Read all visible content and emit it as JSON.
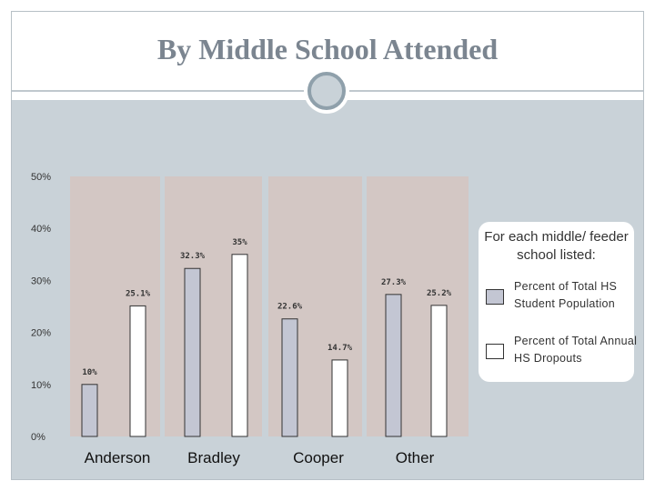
{
  "slide": {
    "title": "By Middle School Attended"
  },
  "chart_data": {
    "type": "bar",
    "title": "",
    "categories": [
      "Anderson",
      "Bradley",
      "Cooper",
      "Other"
    ],
    "series": [
      {
        "name": "Percent of Total HS Student Population",
        "color": "#c3c6d3",
        "values": [
          10,
          32.3,
          22.6,
          27.3
        ],
        "labels": [
          "10%",
          "32.3%",
          "22.6%",
          "27.3%"
        ]
      },
      {
        "name": "Percent of Total Annual HS Dropouts",
        "color": "#ffffff",
        "values": [
          25.1,
          35,
          14.7,
          25.2
        ],
        "labels": [
          "25.1%",
          "35%",
          "14.7%",
          "25.2%"
        ]
      }
    ],
    "ylim": [
      0,
      50
    ],
    "yticks": [
      0,
      10,
      20,
      30,
      40,
      50
    ],
    "ytick_labels": [
      "0%",
      "10%",
      "20%",
      "30%",
      "40%",
      "50%"
    ],
    "xlabel": "",
    "ylabel": "",
    "plot_bg": "#d3c7c4",
    "grid": false
  },
  "legend": {
    "title": "For each middle/ feeder school listed:",
    "items": [
      {
        "label": "Percent of Total HS Student Population",
        "color": "#c3c6d3"
      },
      {
        "label": "Percent of Total Annual HS Dropouts",
        "color": "#ffffff"
      }
    ]
  }
}
